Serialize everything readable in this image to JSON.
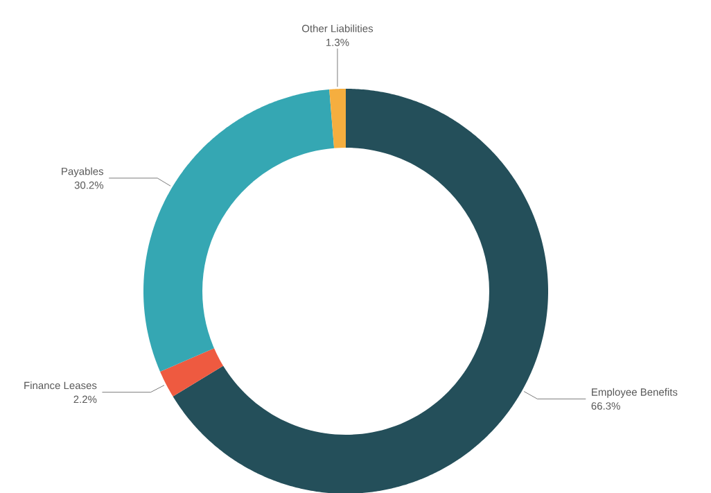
{
  "chart_data": {
    "type": "donut",
    "categories": [
      "Employee Benefits",
      "Finance Leases",
      "Payables",
      "Other Liabilities"
    ],
    "values": [
      66.3,
      2.2,
      30.2,
      1.3
    ],
    "colors": [
      "#244f5a",
      "#ee5a40",
      "#35a7b3",
      "#f5ae3f"
    ],
    "value_labels": [
      "66.3%",
      "2.2%",
      "30.2%",
      "1.3%"
    ]
  }
}
